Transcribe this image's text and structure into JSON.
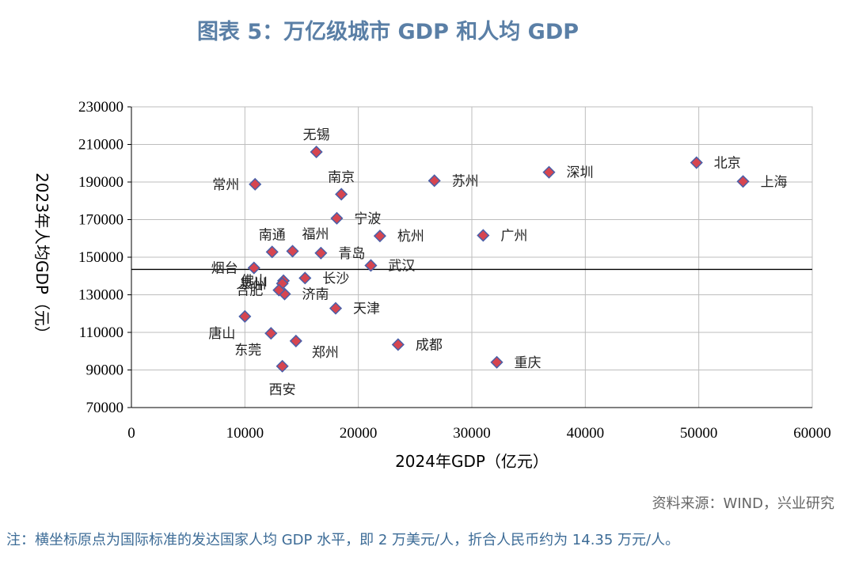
{
  "title": "图表 5：万亿级城市 GDP 和人均 GDP",
  "source": "资料来源：WIND，兴业研究",
  "note": "注：横坐标原点为国际标准的发达国家人均 GDP 水平，即 2 万美元/人，折合人民币约为 14.35 万元/人。",
  "colors": {
    "marker_fill": "#d64550",
    "marker_edge": "#4a5fa8",
    "grid": "#bdbdbd",
    "title": "#5a7fa6",
    "note": "#3d6c97"
  },
  "chart_data": {
    "type": "scatter",
    "xlabel": "2024年GDP（亿元）",
    "ylabel": "2023年人均GDP（元）",
    "xlim": [
      0,
      60000
    ],
    "ylim": [
      70000,
      230000
    ],
    "x_ticks": [
      0,
      10000,
      20000,
      30000,
      40000,
      50000,
      60000
    ],
    "y_ticks": [
      70000,
      90000,
      110000,
      130000,
      150000,
      170000,
      190000,
      210000,
      230000
    ],
    "reference_line_y": 143500,
    "grid": true,
    "points": [
      {
        "city": "上海",
        "x": 53900,
        "y": 190300,
        "label_pos": "right"
      },
      {
        "city": "北京",
        "x": 49800,
        "y": 200300,
        "label_pos": "right"
      },
      {
        "city": "深圳",
        "x": 36800,
        "y": 195200,
        "label_pos": "right"
      },
      {
        "city": "重庆",
        "x": 32200,
        "y": 94100,
        "label_pos": "right"
      },
      {
        "city": "广州",
        "x": 31000,
        "y": 161600,
        "label_pos": "right"
      },
      {
        "city": "苏州",
        "x": 26700,
        "y": 190700,
        "label_pos": "right"
      },
      {
        "city": "成都",
        "x": 23500,
        "y": 103500,
        "label_pos": "right"
      },
      {
        "city": "杭州",
        "x": 21900,
        "y": 161300,
        "label_pos": "right"
      },
      {
        "city": "武汉",
        "x": 21100,
        "y": 145600,
        "label_pos": "right"
      },
      {
        "city": "南京",
        "x": 18500,
        "y": 183500,
        "label_pos": "above-left"
      },
      {
        "city": "宁波",
        "x": 18100,
        "y": 170700,
        "label_pos": "right"
      },
      {
        "city": "天津",
        "x": 18000,
        "y": 122800,
        "label_pos": "right"
      },
      {
        "city": "青岛",
        "x": 16700,
        "y": 152200,
        "label_pos": "right"
      },
      {
        "city": "无锡",
        "x": 16300,
        "y": 206000,
        "label_pos": "above"
      },
      {
        "city": "长沙",
        "x": 15300,
        "y": 138900,
        "label_pos": "right"
      },
      {
        "city": "郑州",
        "x": 14500,
        "y": 105400,
        "label_pos": "below-right"
      },
      {
        "city": "福州",
        "x": 14200,
        "y": 153200,
        "label_pos": "above-right"
      },
      {
        "city": "济南",
        "x": 13500,
        "y": 130400,
        "label_pos": "right"
      },
      {
        "city": "佛山",
        "x": 13400,
        "y": 137500,
        "label_pos": "left"
      },
      {
        "city": "泉州",
        "x": 13300,
        "y": 136000,
        "label_pos": "left"
      },
      {
        "city": "西安",
        "x": 13300,
        "y": 92000,
        "label_pos": "below"
      },
      {
        "city": "南通",
        "x": 12400,
        "y": 152800,
        "label_pos": "above"
      },
      {
        "city": "东莞",
        "x": 12300,
        "y": 109500,
        "label_pos": "below-left"
      },
      {
        "city": "常州",
        "x": 10900,
        "y": 188800,
        "label_pos": "left"
      },
      {
        "city": "烟台",
        "x": 10800,
        "y": 144300,
        "label_pos": "left"
      },
      {
        "city": "唐山",
        "x": 10000,
        "y": 118500,
        "label_pos": "below-left"
      },
      {
        "city": "合肥",
        "x": 13000,
        "y": 132500,
        "label_pos": "left"
      }
    ]
  }
}
